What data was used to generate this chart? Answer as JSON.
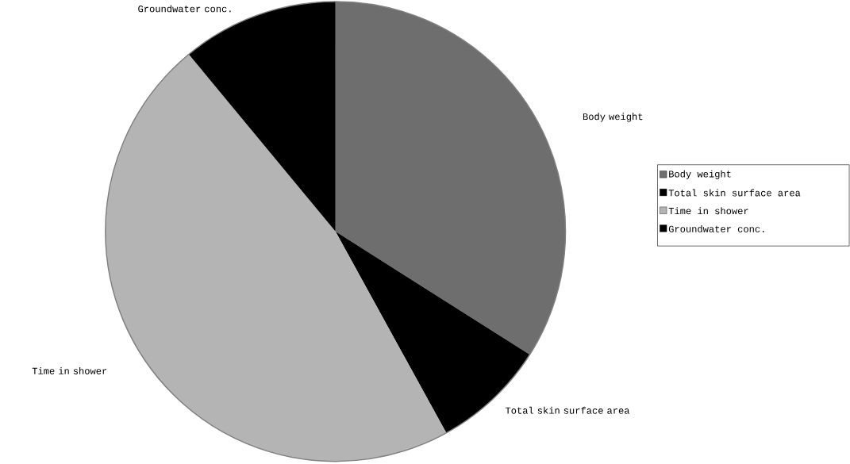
{
  "chart_data": {
    "type": "pie",
    "categories": [
      "Body weight",
      "Total skin surface area",
      "Time in shower",
      "Groundwater conc."
    ],
    "values": [
      34,
      8,
      47,
      11
    ],
    "colors": [
      "#6e6e6e",
      "#000000",
      "#b4b4b4",
      "#000000"
    ],
    "legend": "right"
  }
}
